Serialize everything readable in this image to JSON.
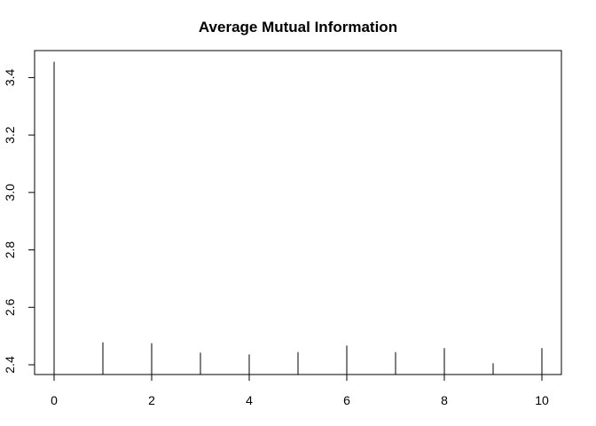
{
  "chart_data": {
    "type": "bar",
    "title": "Average Mutual Information",
    "xlabel": "",
    "ylabel": "",
    "x": [
      0,
      1,
      2,
      3,
      4,
      5,
      6,
      7,
      8,
      9,
      10
    ],
    "values": [
      3.455,
      2.478,
      2.475,
      2.442,
      2.436,
      2.444,
      2.467,
      2.444,
      2.458,
      2.405,
      2.458
    ],
    "xlim": [
      -0.4,
      10.4
    ],
    "ylim": [
      2.366,
      3.494
    ],
    "xticks": [
      0,
      2,
      4,
      6,
      8,
      10
    ],
    "xtick_labels": [
      "0",
      "2",
      "4",
      "6",
      "8",
      "10"
    ],
    "yticks": [
      2.4,
      2.6,
      2.8,
      3.0,
      3.2,
      3.4
    ],
    "ytick_labels": [
      "2.4",
      "2.6",
      "2.8",
      "3.0",
      "3.2",
      "3.4"
    ],
    "grid": false,
    "legend": "none",
    "bar_color": "#000000"
  }
}
